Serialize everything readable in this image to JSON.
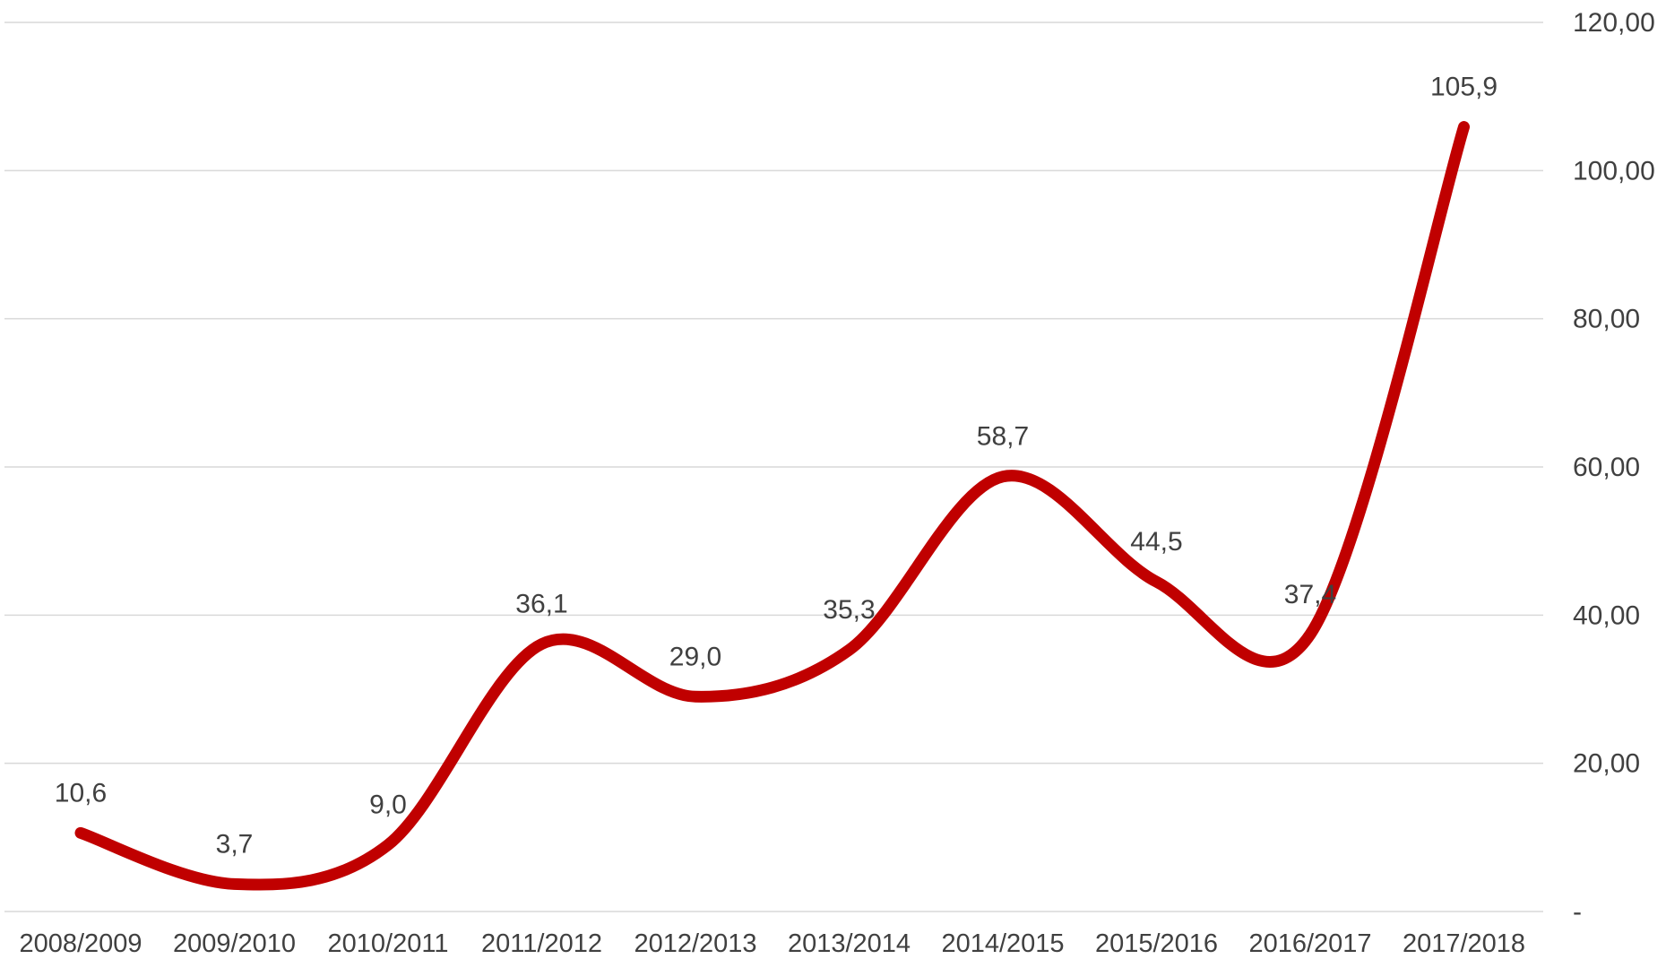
{
  "chart_data": {
    "type": "line",
    "categories": [
      "2008/2009",
      "2009/2010",
      "2010/2011",
      "2011/2012",
      "2012/2013",
      "2013/2014",
      "2014/2015",
      "2015/2016",
      "2016/2017",
      "2017/2018"
    ],
    "values": [
      10.6,
      3.7,
      9.0,
      36.1,
      29.0,
      35.3,
      58.7,
      44.5,
      37.4,
      105.9
    ],
    "data_labels": [
      "10,6",
      "3,7",
      "9,0",
      "36,1",
      "29,0",
      "35,3",
      "58,7",
      "44,5",
      "37,4",
      "105,9"
    ],
    "y_ticks": [
      0,
      20,
      40,
      60,
      80,
      100,
      120
    ],
    "y_tick_labels": [
      "-",
      "20,00",
      "40,00",
      "60,00",
      "80,00",
      "100,00",
      "120,00"
    ],
    "ylim": [
      0,
      120
    ],
    "y_axis_side": "right",
    "grid": true,
    "smooth": true,
    "line_color": "#C00000",
    "grid_color": "#D9D9D9",
    "text_color": "#404040"
  }
}
